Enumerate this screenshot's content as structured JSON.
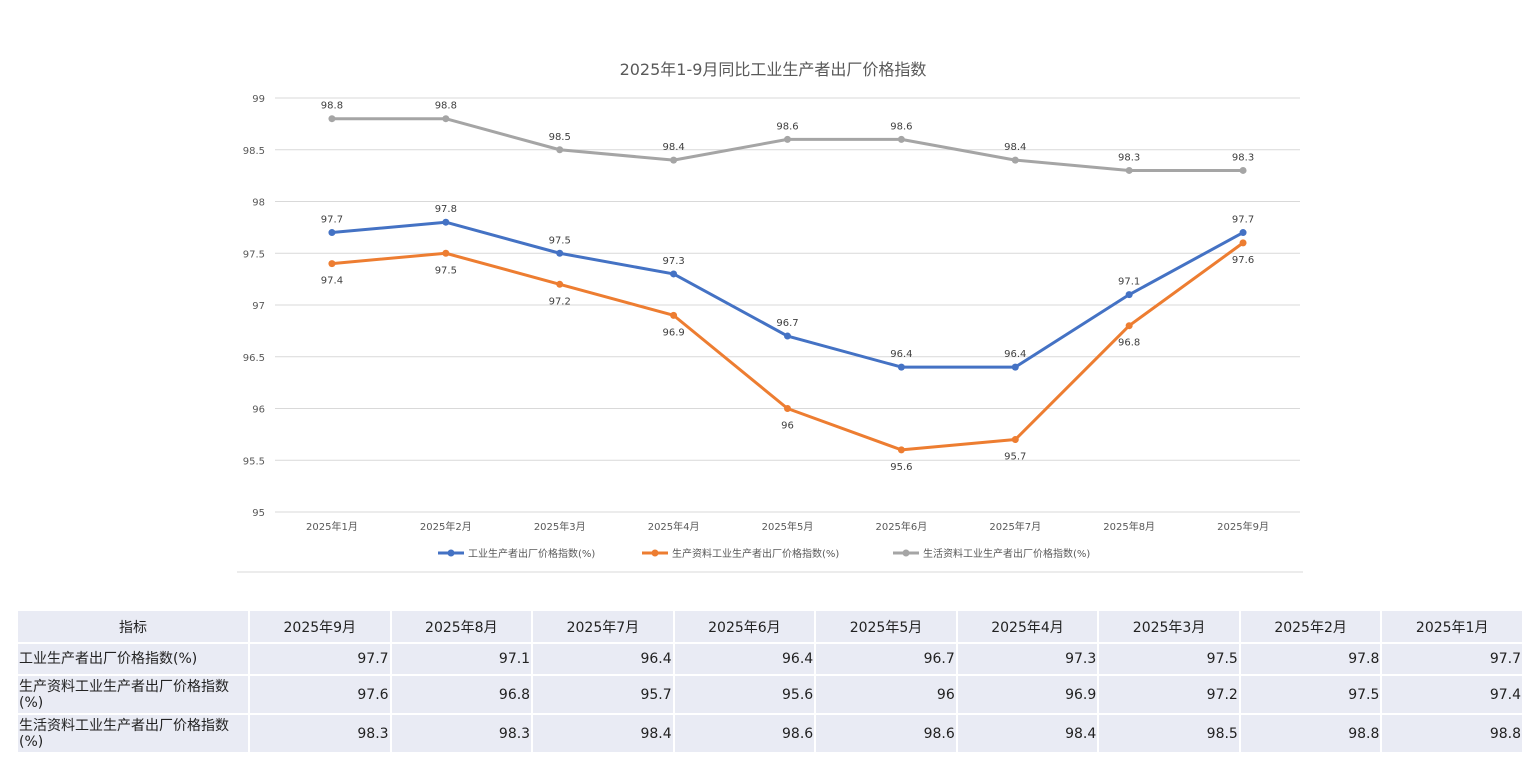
{
  "chart_data": {
    "type": "line",
    "title": "2025年1-9月同比工业生产者出厂价格指数",
    "categories": [
      "2025年1月",
      "2025年2月",
      "2025年3月",
      "2025年4月",
      "2025年5月",
      "2025年6月",
      "2025年7月",
      "2025年8月",
      "2025年9月"
    ],
    "yticks": [
      "95",
      "95.5",
      "96",
      "96.5",
      "97",
      "97.5",
      "98",
      "98.5",
      "99"
    ],
    "ylim": [
      95,
      99
    ],
    "grid": true,
    "legend_position": "bottom",
    "series": [
      {
        "name": "工业生产者出厂价格指数(%)",
        "color": "#4472c4",
        "values": [
          97.7,
          97.8,
          97.5,
          97.3,
          96.7,
          96.4,
          96.4,
          97.1,
          97.7
        ],
        "labels": [
          "97.7",
          "97.8",
          "97.5",
          "97.3",
          "96.7",
          "96.4",
          "96.4",
          "97.1",
          "97.7"
        ],
        "label_position": "above"
      },
      {
        "name": "生产资料工业生产者出厂价格指数(%)",
        "color": "#ed7d31",
        "values": [
          97.4,
          97.5,
          97.2,
          96.9,
          96.0,
          95.6,
          95.7,
          96.8,
          97.6
        ],
        "labels": [
          "97.4",
          "97.5",
          "97.2",
          "96.9",
          "96",
          "95.6",
          "95.7",
          "96.8",
          "97.6"
        ],
        "label_position": "below"
      },
      {
        "name": "生活资料工业生产者出厂价格指数(%)",
        "color": "#a5a5a5",
        "values": [
          98.8,
          98.8,
          98.5,
          98.4,
          98.6,
          98.6,
          98.4,
          98.3,
          98.3
        ],
        "labels": [
          "98.8",
          "98.8",
          "98.5",
          "98.4",
          "98.6",
          "98.6",
          "98.4",
          "98.3",
          "98.3"
        ],
        "label_position": "above"
      }
    ]
  },
  "table": {
    "header": [
      "指标",
      "2025年9月",
      "2025年8月",
      "2025年7月",
      "2025年6月",
      "2025年5月",
      "2025年4月",
      "2025年3月",
      "2025年2月",
      "2025年1月"
    ],
    "rows": [
      {
        "label": "工业生产者出厂价格指数(%)",
        "values": [
          "97.7",
          "97.1",
          "96.4",
          "96.4",
          "96.7",
          "97.3",
          "97.5",
          "97.8",
          "97.7"
        ]
      },
      {
        "label": "生产资料工业生产者出厂价格指数(%)",
        "values": [
          "97.6",
          "96.8",
          "95.7",
          "95.6",
          "96",
          "96.9",
          "97.2",
          "97.5",
          "97.4"
        ]
      },
      {
        "label": "生活资料工业生产者出厂价格指数(%)",
        "values": [
          "98.3",
          "98.3",
          "98.4",
          "98.6",
          "98.6",
          "98.4",
          "98.5",
          "98.8",
          "98.8"
        ]
      }
    ]
  }
}
